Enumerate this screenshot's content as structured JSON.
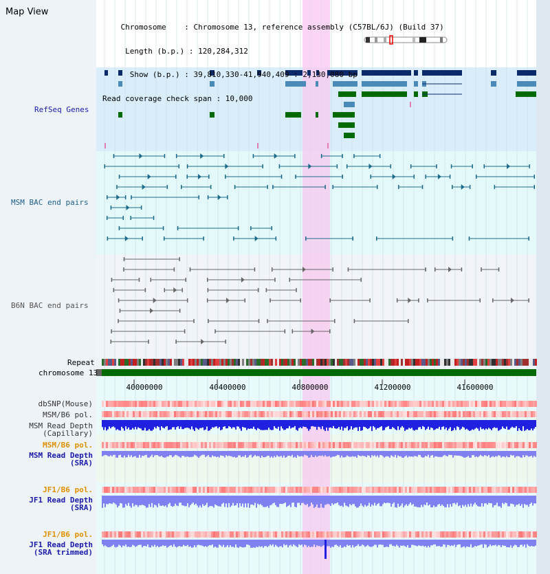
{
  "map_view": {
    "title": "Map View",
    "header_lines": [
      "    Chromosome    : Chromosome 13, reference assembly (C57BL/6J) (Build 37)",
      "     Length (b.p.) : 120,284,312",
      "      Show (b.p.) : 39,810,330-41,940,409 : 2,130,080 bp",
      "Read coverage check span : 10,000"
    ],
    "chromosome_label": "chromosome 13",
    "repeat_label": "Repeat",
    "axis_ticks": [
      "40000000",
      "40400000",
      "40800000",
      "41200000",
      "41600000"
    ],
    "tracks": [
      {
        "label": "RefSeq Genes",
        "color": "#1a1aaa"
      },
      {
        "label": "MSM BAC end pairs",
        "color": "#20608a"
      },
      {
        "label": "B6N BAC end pairs",
        "color": "#555555"
      }
    ],
    "lower_tracks": [
      {
        "label": "dbSNP(Mouse)",
        "color": "#333333"
      },
      {
        "label": "MSM/B6 pol.",
        "color": "#333333"
      },
      {
        "label": "MSM Read Depth\n(Capillary)",
        "color": "#333333"
      },
      {
        "label": "MSM/B6 pol.",
        "color": "#e09000"
      },
      {
        "label": "MSM Read Depth\n(SRA)",
        "color": "#1a1aaa"
      },
      {
        "label": "JF1/B6 pol.",
        "color": "#e09000"
      },
      {
        "label": "JF1 Read Depth\n(SRA)",
        "color": "#1a1aaa"
      },
      {
        "label": "JF1/B6 pol.",
        "color": "#e09000"
      },
      {
        "label": "JF1 Read Depth\n(SRA trimmed)",
        "color": "#1a1aaa"
      }
    ],
    "colors": {
      "refseq_bg": "#d9eefa",
      "msm_bg": "#e4fafa",
      "b6n_bg": "#f1f4f8",
      "highlight": "#f8c8f0",
      "gene_dark": "#0a2a6a",
      "gene_mid": "#4a8ab8",
      "gene_green": "#006a00",
      "chromosome_bar": "#006a00",
      "depth_blue": "#2020e0",
      "depth_light": "#8080f0"
    }
  }
}
